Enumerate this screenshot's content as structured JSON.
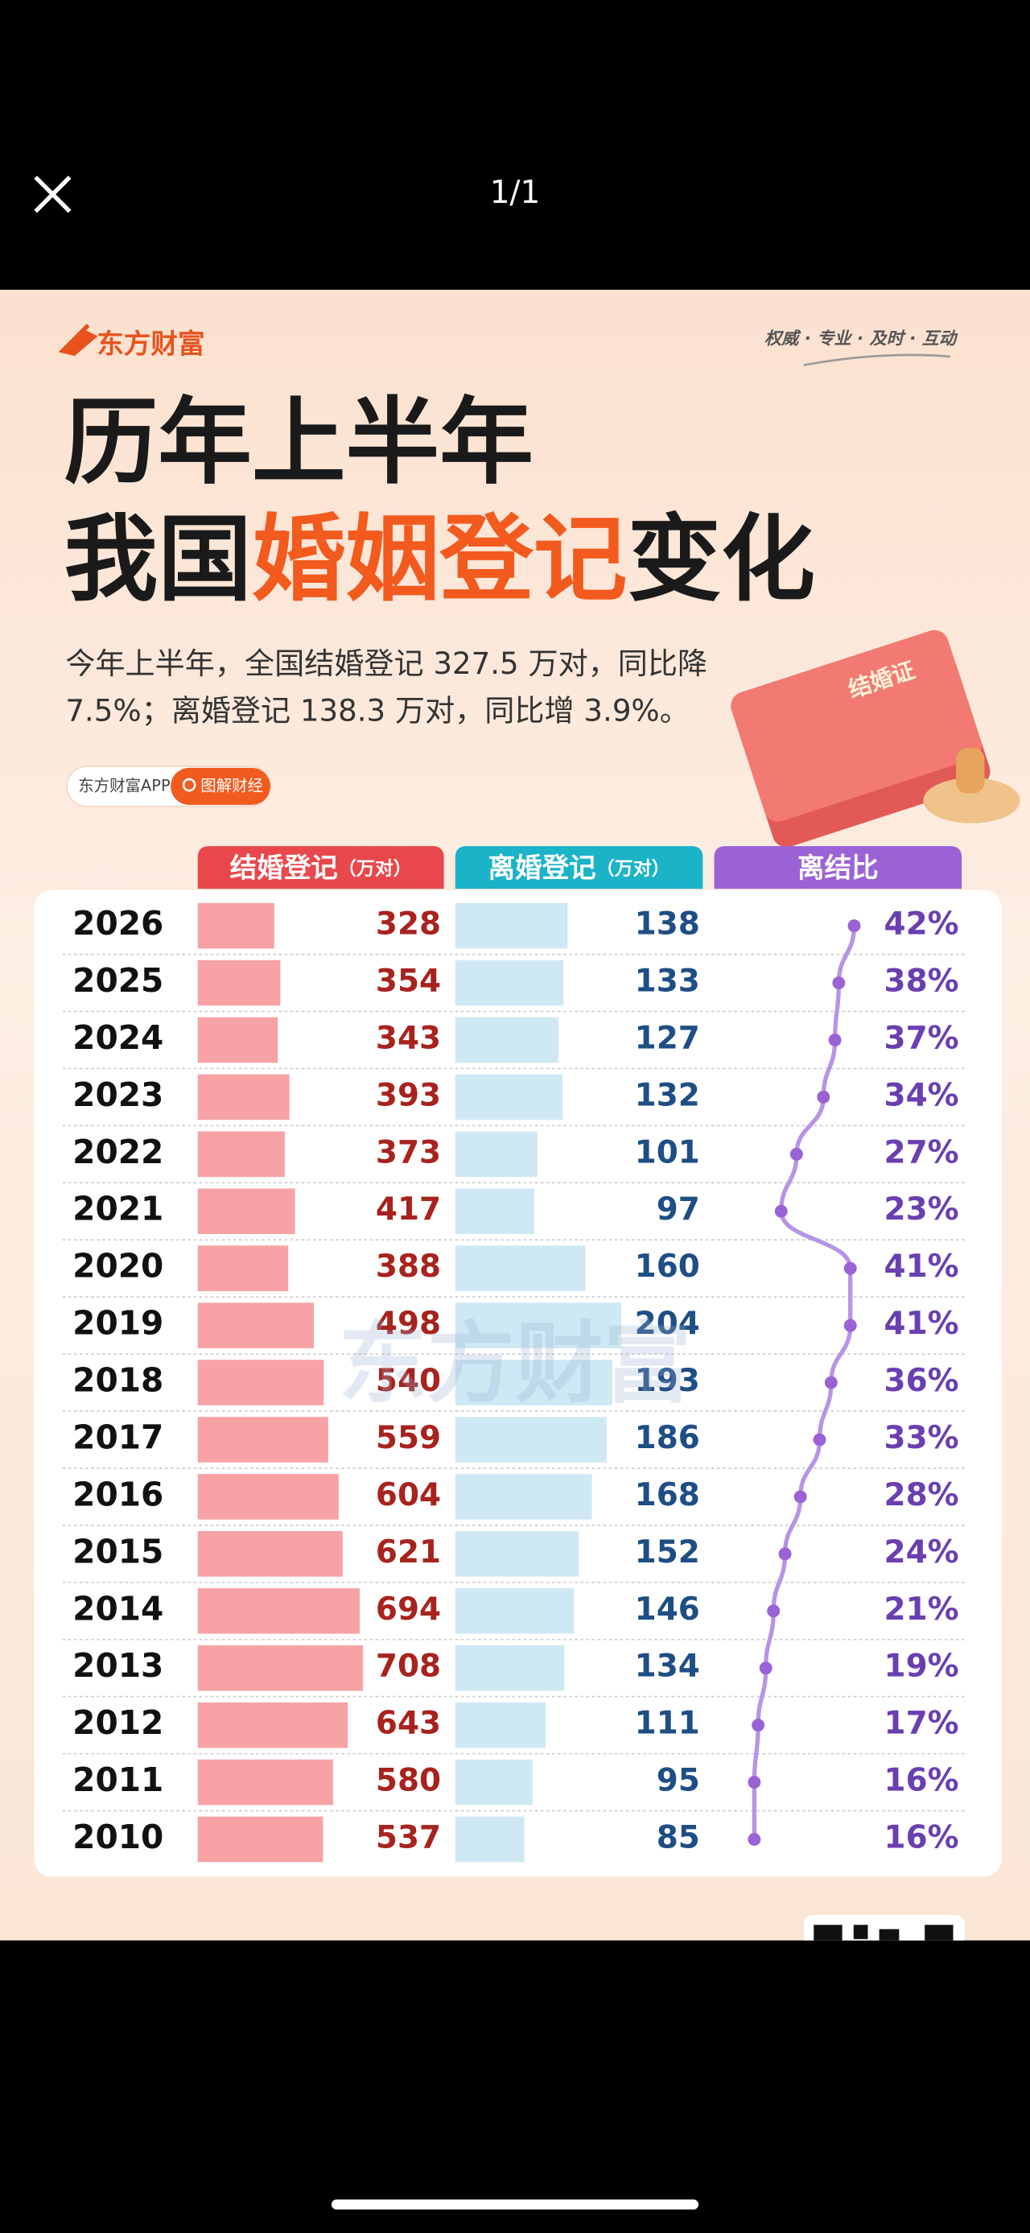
{
  "viewer": {
    "counter": "1/1"
  },
  "poster": {
    "brand": "东方财富",
    "slogan": "权威 · 专业 · 及时 · 互动",
    "title_line1": "历年上半年",
    "title_line2": {
      "prefix": "我国",
      "highlight": "婚姻登记",
      "suffix": "变化"
    },
    "description": [
      "今年上半年，全国结婚登记 327.5 万对，同比降",
      "7.5%；离婚登记 138.3 万对，同比增 3.9%。"
    ],
    "book_label": "结婚证",
    "app_tag": "东方财富APP",
    "app_button": "图解财经",
    "watermark": "东方财富",
    "table": {
      "columns": [
        {
          "name": "结婚登记",
          "unit": "（万对）"
        },
        {
          "name": "离婚登记",
          "unit": "（万对）"
        },
        {
          "name": "离结比"
        }
      ],
      "rows": [
        {
          "year": "2026",
          "marriage": 328,
          "divorce": 138,
          "ratio": 42,
          "ratio_label": "42%"
        },
        {
          "year": "2025",
          "marriage": 354,
          "divorce": 133,
          "ratio": 38,
          "ratio_label": "38%"
        },
        {
          "year": "2024",
          "marriage": 343,
          "divorce": 127,
          "ratio": 37,
          "ratio_label": "37%"
        },
        {
          "year": "2023",
          "marriage": 393,
          "divorce": 132,
          "ratio": 34,
          "ratio_label": "34%"
        },
        {
          "year": "2022",
          "marriage": 373,
          "divorce": 101,
          "ratio": 27,
          "ratio_label": "27%"
        },
        {
          "year": "2021",
          "marriage": 417,
          "divorce": 97,
          "ratio": 23,
          "ratio_label": "23%"
        },
        {
          "year": "2020",
          "marriage": 388,
          "divorce": 160,
          "ratio": 41,
          "ratio_label": "41%"
        },
        {
          "year": "2019",
          "marriage": 498,
          "divorce": 204,
          "ratio": 41,
          "ratio_label": "41%"
        },
        {
          "year": "2018",
          "marriage": 540,
          "divorce": 193,
          "ratio": 36,
          "ratio_label": "36%"
        },
        {
          "year": "2017",
          "marriage": 559,
          "divorce": 186,
          "ratio": 33,
          "ratio_label": "33%"
        },
        {
          "year": "2016",
          "marriage": 604,
          "divorce": 168,
          "ratio": 28,
          "ratio_label": "28%"
        },
        {
          "year": "2015",
          "marriage": 621,
          "divorce": 152,
          "ratio": 24,
          "ratio_label": "24%"
        },
        {
          "year": "2014",
          "marriage": 694,
          "divorce": 146,
          "ratio": 21,
          "ratio_label": "21%"
        },
        {
          "year": "2013",
          "marriage": 708,
          "divorce": 134,
          "ratio": 19,
          "ratio_label": "19%"
        },
        {
          "year": "2012",
          "marriage": 643,
          "divorce": 111,
          "ratio": 17,
          "ratio_label": "17%"
        },
        {
          "year": "2011",
          "marriage": 580,
          "divorce": 95,
          "ratio": 16,
          "ratio_label": "16%"
        },
        {
          "year": "2010",
          "marriage": 537,
          "divorce": 85,
          "ratio": 16,
          "ratio_label": "16%"
        }
      ]
    }
  }
}
